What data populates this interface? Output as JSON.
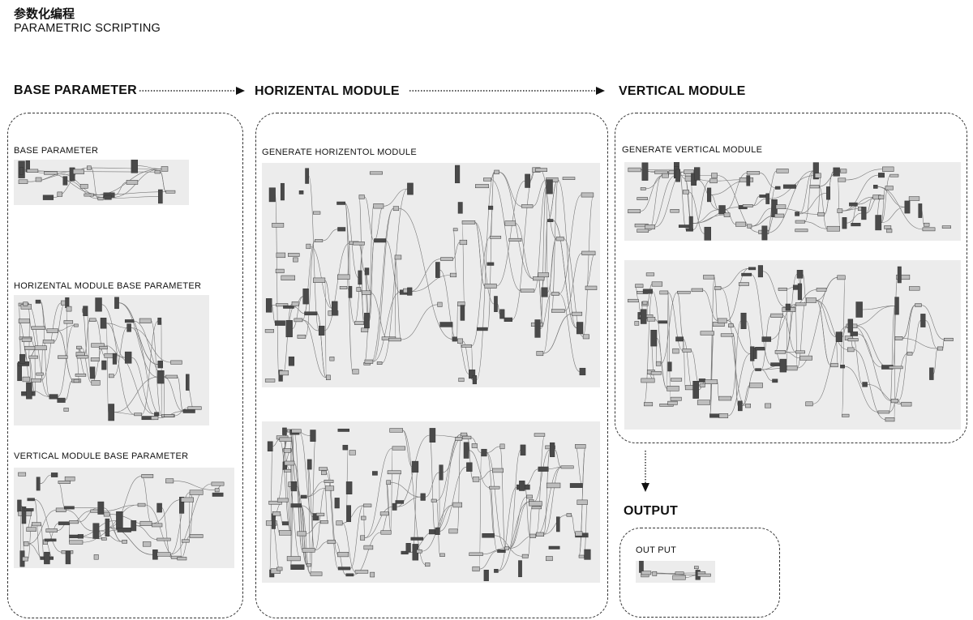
{
  "header": {
    "title_zh": "参数化编程",
    "title_en": "PARAMETRIC SCRIPTING"
  },
  "stages": {
    "base": "BASE PARAMETER",
    "horizontal": "HORIZENTAL MODULE",
    "vertical": "VERTICAL MODULE",
    "output": "OUTPUT"
  },
  "panels": {
    "base_parameter": "BASE PARAMETER",
    "horizontal_base": "HORIZENTAL MODULE BASE PARAMETER",
    "vertical_base": "VERTICAL MODULE BASE PARAMETER",
    "generate_horizontal": "GENERATE HORIZENTOL MODULE",
    "generate_vertical": "GENERATE VERTICAL MODULE",
    "output": "OUT PUT"
  },
  "colors": {
    "canvas": "#ececec",
    "node": "#bdbdbd",
    "node_dark": "#4a4a4a",
    "wire": "#777777",
    "frame": "#333333"
  },
  "graphs": {
    "base_parameter": {
      "nodes": 24,
      "wires": 22,
      "seed": 3
    },
    "horizontal_base": {
      "nodes": 70,
      "wires": 64,
      "seed": 7
    },
    "vertical_base": {
      "nodes": 60,
      "wires": 52,
      "seed": 11
    },
    "gen_h_top": {
      "nodes": 120,
      "wires": 110,
      "seed": 13
    },
    "gen_h_bottom": {
      "nodes": 130,
      "wires": 118,
      "seed": 17
    },
    "gen_v_top": {
      "nodes": 80,
      "wires": 72,
      "seed": 19
    },
    "gen_v_bottom": {
      "nodes": 110,
      "wires": 100,
      "seed": 23
    },
    "output": {
      "nodes": 10,
      "wires": 9,
      "seed": 29
    }
  }
}
